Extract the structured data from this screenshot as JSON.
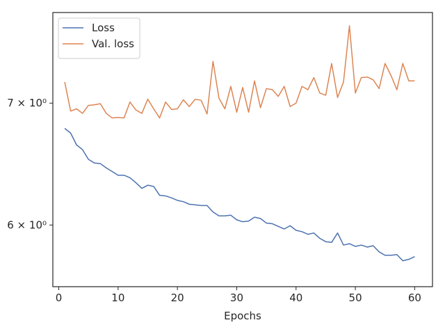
{
  "chart_data": {
    "type": "line",
    "xlabel": "Epochs",
    "ylabel": "",
    "yscale": "log",
    "xlim": [
      -1,
      63
    ],
    "ylim": [
      5.55,
      7.85
    ],
    "x_ticks": [
      0,
      10,
      20,
      30,
      40,
      50,
      60
    ],
    "x_tick_labels": [
      "0",
      "10",
      "20",
      "30",
      "40",
      "50",
      "60"
    ],
    "y_ticks": [
      6,
      7
    ],
    "y_tick_labels": [
      "6 × 10⁰",
      "7 × 10⁰"
    ],
    "grid": false,
    "legend_position": "top-left",
    "x": [
      1,
      2,
      3,
      4,
      5,
      6,
      7,
      8,
      9,
      10,
      11,
      12,
      13,
      14,
      15,
      16,
      17,
      18,
      19,
      20,
      21,
      22,
      23,
      24,
      25,
      26,
      27,
      28,
      29,
      30,
      31,
      32,
      33,
      34,
      35,
      36,
      37,
      38,
      39,
      40,
      41,
      42,
      43,
      44,
      45,
      46,
      47,
      48,
      49,
      50,
      51,
      52,
      53,
      54,
      55,
      56,
      57,
      58,
      59,
      60
    ],
    "series": [
      {
        "name": "Loss",
        "color": "#4c72b0",
        "values": [
          6.78,
          6.74,
          6.64,
          6.6,
          6.52,
          6.49,
          6.485,
          6.45,
          6.42,
          6.39,
          6.39,
          6.37,
          6.33,
          6.285,
          6.31,
          6.3,
          6.23,
          6.225,
          6.21,
          6.19,
          6.18,
          6.16,
          6.155,
          6.15,
          6.15,
          6.1,
          6.07,
          6.07,
          6.075,
          6.04,
          6.025,
          6.03,
          6.06,
          6.05,
          6.015,
          6.01,
          5.99,
          5.97,
          5.995,
          5.96,
          5.95,
          5.93,
          5.94,
          5.9,
          5.875,
          5.87,
          5.94,
          5.85,
          5.86,
          5.84,
          5.85,
          5.835,
          5.845,
          5.8,
          5.775,
          5.775,
          5.78,
          5.735,
          5.745,
          5.765
        ]
      },
      {
        "name": "Val. loss",
        "color": "#dd8452",
        "values": [
          7.19,
          6.93,
          6.95,
          6.91,
          6.98,
          6.985,
          6.995,
          6.91,
          6.87,
          6.875,
          6.87,
          7.01,
          6.94,
          6.91,
          7.035,
          6.95,
          6.87,
          7.01,
          6.945,
          6.95,
          7.03,
          6.97,
          7.035,
          7.025,
          6.905,
          7.38,
          7.045,
          6.95,
          7.15,
          6.92,
          7.14,
          6.92,
          7.2,
          6.96,
          7.13,
          7.12,
          7.06,
          7.15,
          6.97,
          7.0,
          7.15,
          7.12,
          7.23,
          7.09,
          7.07,
          7.36,
          7.05,
          7.19,
          7.72,
          7.09,
          7.23,
          7.235,
          7.21,
          7.13,
          7.36,
          7.25,
          7.12,
          7.36,
          7.2,
          7.2
        ]
      }
    ]
  }
}
